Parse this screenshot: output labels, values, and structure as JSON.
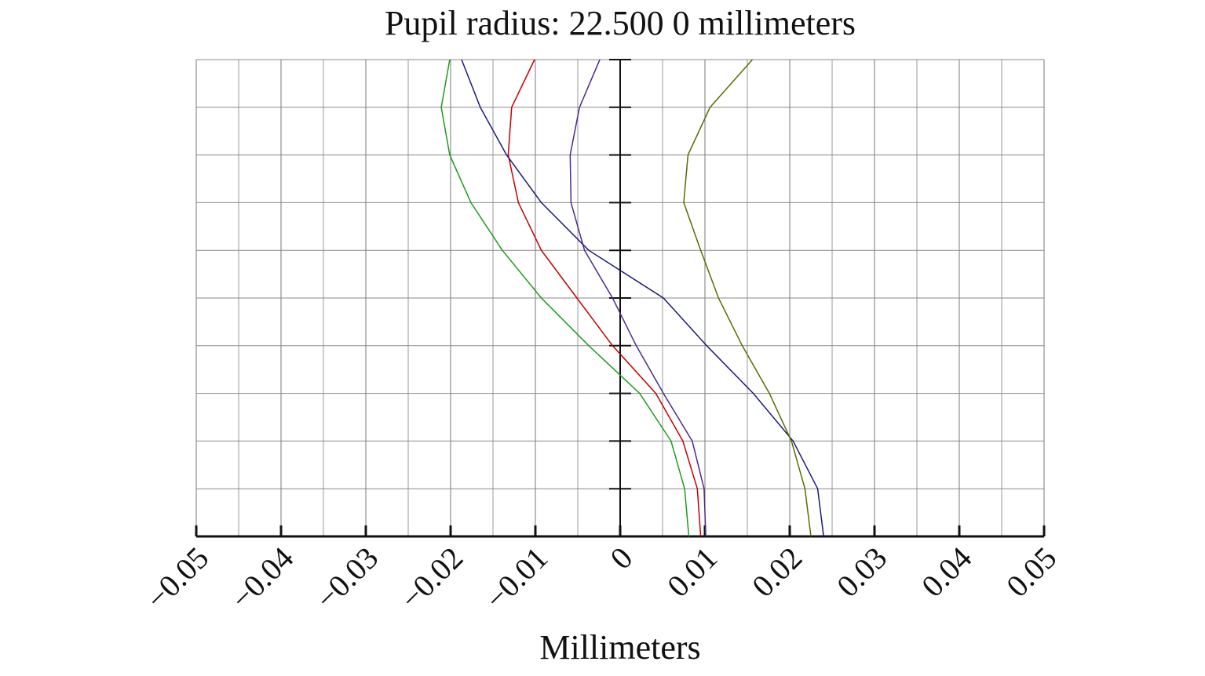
{
  "chart_data": {
    "type": "line",
    "title": "Pupil radius: 22.500 0 millimeters",
    "x_label": "Millimeters",
    "y": [
      0,
      0.1,
      0.2,
      0.3,
      0.4,
      0.5,
      0.6,
      0.7,
      0.8,
      0.9,
      1.0
    ],
    "series": [
      {
        "color": "#1f9a1f",
        "values": [
          0.0081,
          0.0076,
          0.006,
          0.0023,
          -0.0037,
          -0.0093,
          -0.0139,
          -0.0176,
          -0.0201,
          -0.0211,
          -0.0201
        ]
      },
      {
        "color": "#c00000",
        "values": [
          0.0095,
          0.0091,
          0.0074,
          0.0042,
          -0.0009,
          -0.0051,
          -0.0093,
          -0.012,
          -0.0132,
          -0.0128,
          -0.0101
        ]
      },
      {
        "color": "#4a2a8c",
        "values": [
          0.0101,
          0.0099,
          0.0085,
          0.0051,
          0.0019,
          -0.0009,
          -0.0042,
          -0.0058,
          -0.0059,
          -0.0048,
          -0.0024
        ]
      },
      {
        "color": "#1a1a7a",
        "values": [
          0.024,
          0.0233,
          0.0204,
          0.0157,
          0.0102,
          0.0051,
          -0.0037,
          -0.0093,
          -0.0134,
          -0.0165,
          -0.0187
        ]
      },
      {
        "color": "#5a6b00",
        "values": [
          0.0225,
          0.0218,
          0.0202,
          0.0176,
          0.0144,
          0.0116,
          0.0095,
          0.0075,
          0.008,
          0.0106,
          0.0156
        ]
      }
    ],
    "xlim": [
      -0.05,
      0.05
    ],
    "xticks": [
      {
        "value": -0.05,
        "label": "−0.05"
      },
      {
        "value": -0.04,
        "label": "−0.04"
      },
      {
        "value": -0.03,
        "label": "−0.03"
      },
      {
        "value": -0.02,
        "label": "−0.02"
      },
      {
        "value": -0.01,
        "label": "−0.01"
      },
      0,
      0.01,
      0.02,
      0.03,
      0.04,
      0.05
    ],
    "xgrid_minor": [
      -0.045,
      -0.035,
      -0.025,
      -0.015,
      -0.005,
      0.005,
      0.015,
      0.025,
      0.035,
      0.045
    ],
    "ylim": [
      0,
      1
    ],
    "yticks": [
      0,
      0.1,
      0.2,
      0.3,
      0.4,
      0.5,
      0.6,
      0.7,
      0.8,
      0.9,
      1.0
    ],
    "ytick_labels": false,
    "grid": true
  }
}
